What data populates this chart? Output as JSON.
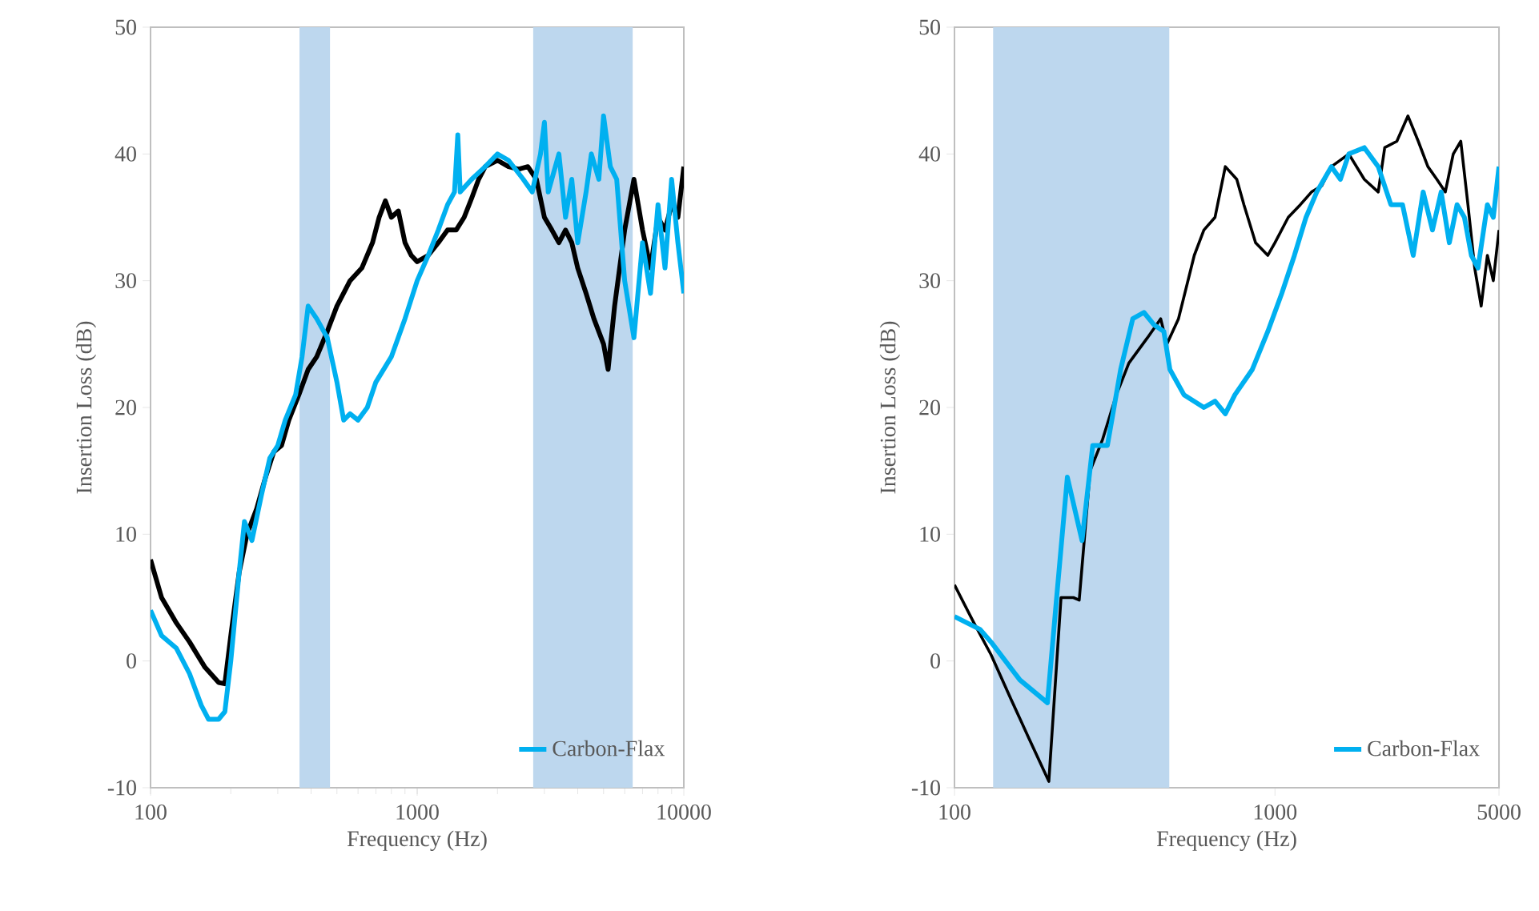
{
  "chart_data": [
    {
      "type": "line",
      "xlabel": "Frequency (Hz)",
      "ylabel": "Insertion Loss (dB)",
      "log": "x",
      "xlim": [
        100,
        10000
      ],
      "ylim": [
        -10,
        50
      ],
      "xticks": [
        100,
        1000,
        10000
      ],
      "yticks": [
        -10,
        0,
        10,
        20,
        30,
        40,
        50
      ],
      "grid": false,
      "legend": "bottom right",
      "line_style": "solid",
      "marker": "none",
      "bands": [
        {
          "axis": "x",
          "from": 362,
          "to": 471,
          "color": "#bdd7ee"
        },
        {
          "axis": "x",
          "from": 2723,
          "to": 6430,
          "color": "#bdd7ee"
        }
      ],
      "series": [
        {
          "color": "#000000",
          "x": [
            100,
            110,
            125,
            140,
            160,
            180,
            190,
            200,
            215,
            230,
            250,
            270,
            290,
            310,
            330,
            360,
            390,
            420,
            460,
            500,
            560,
            620,
            680,
            720,
            760,
            800,
            850,
            900,
            950,
            1000,
            1100,
            1200,
            1300,
            1400,
            1500,
            1600,
            1700,
            1800,
            2000,
            2200,
            2400,
            2600,
            2800,
            3000,
            3200,
            3400,
            3600,
            3800,
            4000,
            4300,
            4600,
            5000,
            5200,
            5500,
            6000,
            6500,
            7000,
            7500,
            8000,
            8500,
            9000,
            9500,
            10000
          ],
          "values": [
            8,
            5,
            3,
            1.5,
            -0.5,
            -1.7,
            -1.8,
            2,
            7,
            10,
            12,
            14.5,
            16.5,
            17,
            19,
            21,
            23,
            24,
            26,
            28,
            30,
            31,
            33,
            35,
            36.3,
            35,
            35.5,
            33,
            32,
            31.5,
            32,
            33,
            34,
            34,
            35,
            36.5,
            38,
            39,
            39.5,
            39,
            38.8,
            39,
            38,
            35,
            34,
            33,
            34,
            33,
            31,
            29,
            27,
            25,
            23,
            28,
            34,
            38,
            34,
            31,
            35,
            34,
            36,
            35,
            39
          ]
        },
        {
          "name": "Carbon-Flax",
          "color": "#00b0f0",
          "x": [
            100,
            110,
            125,
            140,
            155,
            165,
            180,
            190,
            200,
            215,
            225,
            240,
            260,
            280,
            300,
            320,
            350,
            370,
            390,
            420,
            460,
            500,
            530,
            560,
            600,
            650,
            700,
            800,
            900,
            1000,
            1100,
            1200,
            1300,
            1380,
            1420,
            1450,
            1600,
            1800,
            2000,
            2200,
            2500,
            2700,
            2900,
            3000,
            3100,
            3400,
            3600,
            3800,
            4000,
            4300,
            4500,
            4800,
            5000,
            5300,
            5600,
            6000,
            6500,
            7000,
            7500,
            8000,
            8500,
            9000,
            9500,
            10000
          ],
          "values": [
            4,
            2,
            1,
            -1,
            -3.5,
            -4.6,
            -4.6,
            -4,
            0,
            7,
            11,
            9.5,
            13,
            16,
            17,
            19,
            21,
            24,
            28,
            27,
            25.5,
            22,
            19,
            19.5,
            19,
            20,
            22,
            24,
            27,
            30,
            32,
            34,
            36,
            37,
            41.5,
            37,
            38,
            39,
            40,
            39.5,
            38,
            37,
            40,
            42.5,
            37,
            40,
            35,
            38,
            33,
            37,
            40,
            38,
            43,
            39,
            38,
            30,
            25.5,
            33,
            29,
            36,
            31,
            38,
            33,
            29
          ]
        }
      ]
    },
    {
      "type": "line",
      "xlabel": "Frequency (Hz)",
      "ylabel": "Insertion Loss (dB)",
      "log": "x",
      "xlim": [
        100,
        5000
      ],
      "ylim": [
        -10,
        50
      ],
      "xticks": [
        100,
        1000,
        5000
      ],
      "yticks": [
        -10,
        0,
        10,
        20,
        30,
        40,
        50
      ],
      "grid": false,
      "legend": "bottom right",
      "line_style": "solid",
      "marker": "none",
      "bands": [
        {
          "axis": "x",
          "from": 132,
          "to": 468,
          "color": "#bdd7ee"
        }
      ],
      "series": [
        {
          "color": "#000000",
          "x": [
            100,
            115,
            130,
            150,
            170,
            197,
            215,
            235,
            245,
            265,
            290,
            320,
            350,
            400,
            440,
            460,
            500,
            560,
            600,
            650,
            700,
            760,
            800,
            870,
            950,
            1000,
            1100,
            1200,
            1300,
            1400,
            1500,
            1700,
            1900,
            2100,
            2200,
            2400,
            2600,
            2800,
            3000,
            3200,
            3400,
            3600,
            3800,
            4000,
            4200,
            4400,
            4600,
            4800,
            5000
          ],
          "values": [
            6,
            3,
            0.5,
            -3,
            -6,
            -9.5,
            5,
            5,
            4.8,
            15,
            17.5,
            21,
            23.5,
            25.5,
            27,
            25,
            27,
            32,
            34,
            35,
            39,
            38,
            36,
            33,
            32,
            33,
            35,
            36,
            37,
            37.5,
            39,
            40,
            38,
            37,
            40.5,
            41,
            43,
            41,
            39,
            38,
            37,
            40,
            41,
            36,
            31,
            28,
            32,
            30,
            34
          ]
        },
        {
          "name": "Carbon-Flax",
          "color": "#00b0f0",
          "x": [
            100,
            120,
            130,
            160,
            195,
            210,
            225,
            250,
            270,
            300,
            330,
            360,
            390,
            420,
            450,
            470,
            520,
            600,
            650,
            700,
            750,
            850,
            950,
            1050,
            1150,
            1250,
            1350,
            1500,
            1600,
            1700,
            1900,
            2100,
            2300,
            2500,
            2700,
            2900,
            3100,
            3300,
            3500,
            3700,
            3900,
            4100,
            4300,
            4600,
            4800,
            5000
          ],
          "values": [
            3.5,
            2.5,
            1.5,
            -1.5,
            -3.3,
            6,
            14.5,
            9.5,
            17,
            17,
            23,
            27,
            27.5,
            26.5,
            26,
            23,
            21,
            20,
            20.5,
            19.5,
            21,
            23,
            26,
            29,
            32,
            35,
            37,
            39,
            38,
            40,
            40.5,
            39,
            36,
            36,
            32,
            37,
            34,
            37,
            33,
            36,
            35,
            32,
            31,
            36,
            35,
            39
          ]
        }
      ]
    }
  ]
}
